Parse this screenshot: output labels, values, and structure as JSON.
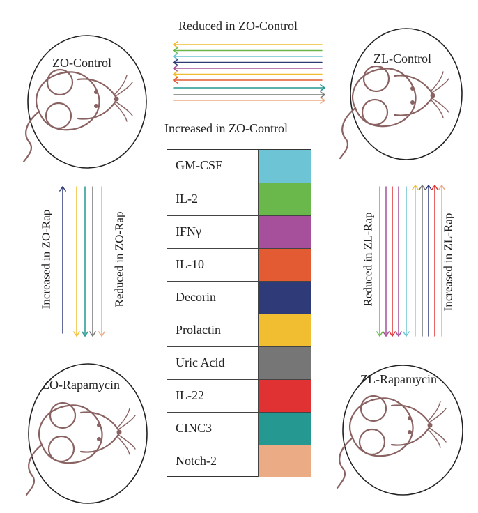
{
  "mice": {
    "zo_control": "ZO-Control",
    "zl_control": "ZL-Control",
    "zo_rapamycin": "ZO-Rapamycin",
    "zl_rapamycin": "ZL-Rapamycin"
  },
  "labels": {
    "top_reduced": "Reduced in ZO-Control",
    "top_increased": "Increased in ZO-Control",
    "left_increased": "Increased in ZO-Rap",
    "left_reduced": "Reduced in ZO-Rap",
    "right_reduced": "Reduced in ZL-Rap",
    "right_increased": "Increased in ZL-Rap"
  },
  "legend": [
    {
      "name": "GM-CSF",
      "color": "#6cc4d4"
    },
    {
      "name": "IL-2",
      "color": "#6ab74c"
    },
    {
      "name": "IFNγ",
      "color": "#a6509c"
    },
    {
      "name": "IL-10",
      "color": "#e35b33"
    },
    {
      "name": "Decorin",
      "color": "#2f3a78"
    },
    {
      "name": "Prolactin",
      "color": "#f1bd31"
    },
    {
      "name": "Uric Acid",
      "color": "#767676"
    },
    {
      "name": "IL-22",
      "color": "#e03232"
    },
    {
      "name": "CINC3",
      "color": "#259991"
    },
    {
      "name": "Notch-2",
      "color": "#ebab85"
    }
  ]
}
